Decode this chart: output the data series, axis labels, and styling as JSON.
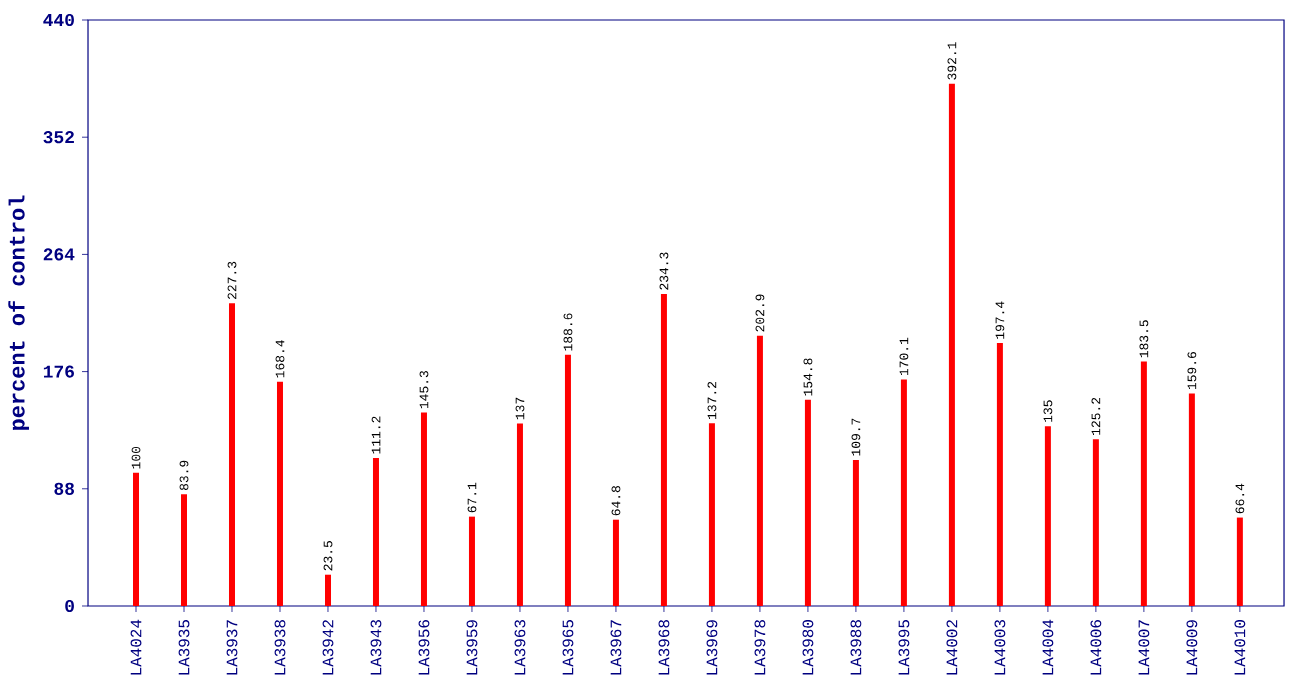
{
  "chart_data": {
    "type": "bar",
    "ylabel": "percent of control",
    "categories": [
      "LA4024",
      "LA3935",
      "LA3937",
      "LA3938",
      "LA3942",
      "LA3943",
      "LA3956",
      "LA3959",
      "LA3963",
      "LA3965",
      "LA3967",
      "LA3968",
      "LA3969",
      "LA3978",
      "LA3980",
      "LA3988",
      "LA3995",
      "LA4002",
      "LA4003",
      "LA4004",
      "LA4006",
      "LA4007",
      "LA4009",
      "LA4010"
    ],
    "values": [
      100,
      83.9,
      227.3,
      168.4,
      23.5,
      111.2,
      145.3,
      67.1,
      137,
      188.6,
      64.8,
      234.3,
      137.2,
      202.9,
      154.8,
      109.7,
      170.1,
      392.1,
      197.4,
      135,
      125.2,
      183.5,
      159.6,
      66.4
    ],
    "color": "#ff0000",
    "ylim": [
      0,
      440
    ],
    "yticks": [
      0,
      88,
      176,
      264,
      352,
      440
    ],
    "data_labels": true,
    "grid": false
  }
}
